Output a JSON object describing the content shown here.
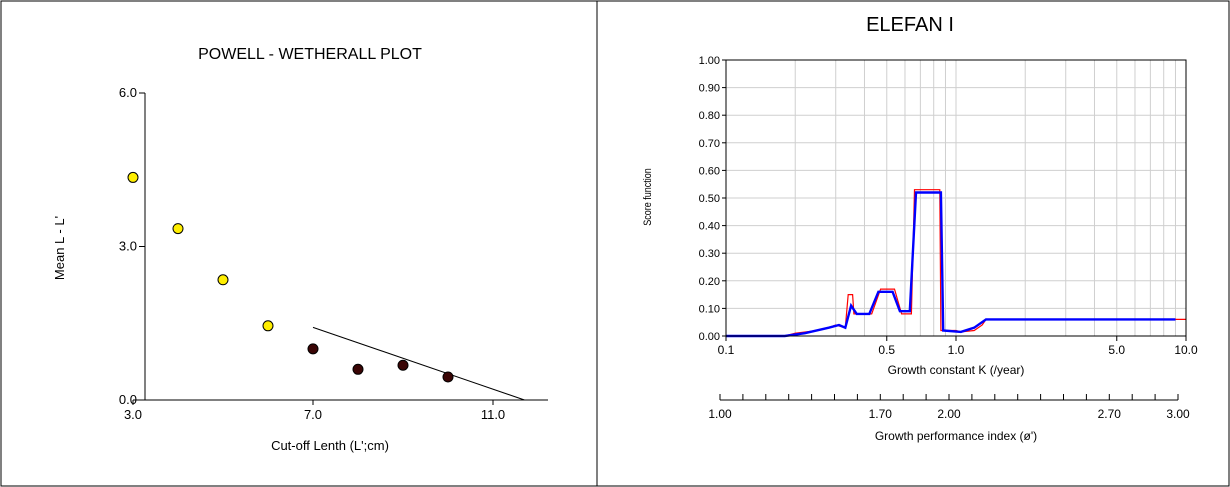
{
  "chart_data": [
    {
      "type": "scatter",
      "title": "POWELL - WETHERALL PLOT",
      "xlabel": "Cut-off Lenth (L';cm)",
      "ylabel": "Mean L - L'",
      "xlim": [
        3.0,
        12.0
      ],
      "ylim": [
        0.0,
        6.0
      ],
      "xticks": [
        "3.0",
        "7.0",
        "11.0"
      ],
      "yticks": [
        "0.0",
        "3.0",
        "6.0"
      ],
      "series": [
        {
          "color": "#ffee00",
          "points": [
            [
              3.0,
              4.35
            ],
            [
              4.0,
              3.35
            ],
            [
              5.0,
              2.35
            ],
            [
              6.0,
              1.45
            ]
          ]
        },
        {
          "color": "#3a0505",
          "points": [
            [
              7.0,
              1.0
            ],
            [
              8.0,
              0.6
            ],
            [
              9.0,
              0.68
            ],
            [
              10.0,
              0.45
            ]
          ]
        }
      ],
      "regression_line": {
        "x": [
          7.0,
          11.7
        ],
        "y": [
          1.42,
          0.0
        ]
      }
    },
    {
      "type": "line",
      "title": "ELEFAN I",
      "xlabel": "Growth constant K (/year)",
      "ylabel": "Score function",
      "xscale": "log",
      "xlim": [
        0.1,
        10.0
      ],
      "ylim": [
        0.0,
        1.0
      ],
      "xticks": [
        "0.1",
        "0.5",
        "1.0",
        "5.0",
        "10.0"
      ],
      "yticks": [
        "0.00",
        "0.10",
        "0.20",
        "0.30",
        "0.40",
        "0.50",
        "0.60",
        "0.70",
        "0.80",
        "0.90",
        "1.00"
      ],
      "grid": true,
      "secondary_axis": {
        "label": "Growth performance index (ø')",
        "ticks": [
          "1.00",
          "1.70",
          "2.00",
          "2.70",
          "3.00"
        ]
      },
      "series": [
        {
          "color": "#ff0000",
          "points": [
            [
              0.1,
              0.0
            ],
            [
              0.18,
              0.0
            ],
            [
              0.2,
              0.01
            ],
            [
              0.25,
              0.02
            ],
            [
              0.28,
              0.03
            ],
            [
              0.3,
              0.04
            ],
            [
              0.33,
              0.03
            ],
            [
              0.34,
              0.15
            ],
            [
              0.355,
              0.15
            ],
            [
              0.36,
              0.08
            ],
            [
              0.43,
              0.08
            ],
            [
              0.47,
              0.17
            ],
            [
              0.54,
              0.17
            ],
            [
              0.58,
              0.08
            ],
            [
              0.64,
              0.08
            ],
            [
              0.66,
              0.53
            ],
            [
              0.85,
              0.53
            ],
            [
              0.86,
              0.02
            ],
            [
              1.0,
              0.02
            ],
            [
              1.05,
              0.015
            ],
            [
              1.2,
              0.02
            ],
            [
              1.3,
              0.04
            ],
            [
              1.35,
              0.06
            ],
            [
              9.0,
              0.06
            ],
            [
              10.0,
              0.06
            ]
          ]
        },
        {
          "color": "#0000ff",
          "points": [
            [
              0.1,
              0.0
            ],
            [
              0.18,
              0.0
            ],
            [
              0.22,
              0.01
            ],
            [
              0.28,
              0.03
            ],
            [
              0.31,
              0.04
            ],
            [
              0.33,
              0.03
            ],
            [
              0.35,
              0.11
            ],
            [
              0.37,
              0.08
            ],
            [
              0.42,
              0.08
            ],
            [
              0.46,
              0.16
            ],
            [
              0.53,
              0.16
            ],
            [
              0.57,
              0.09
            ],
            [
              0.63,
              0.09
            ],
            [
              0.67,
              0.52
            ],
            [
              0.86,
              0.52
            ],
            [
              0.88,
              0.02
            ],
            [
              1.05,
              0.015
            ],
            [
              1.2,
              0.03
            ],
            [
              1.35,
              0.06
            ],
            [
              9.0,
              0.06
            ]
          ]
        }
      ]
    }
  ]
}
